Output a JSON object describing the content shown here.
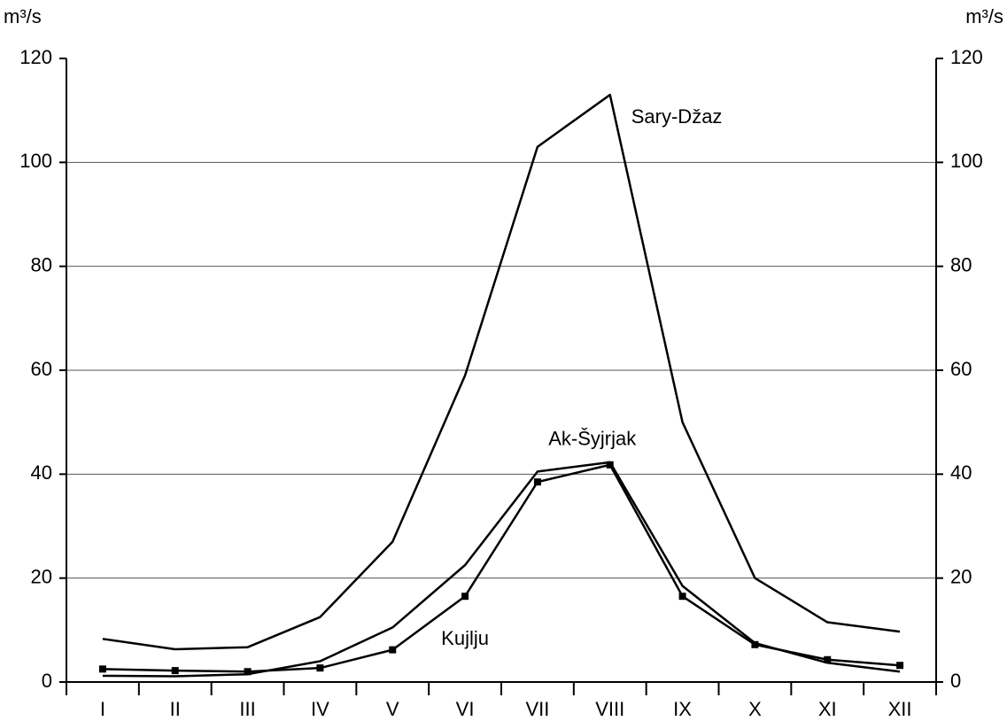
{
  "chart_data": {
    "type": "line",
    "y_label": "m³/s",
    "y2_label": "m³/s",
    "categories": [
      "I",
      "II",
      "III",
      "IV",
      "V",
      "VI",
      "VII",
      "VIII",
      "IX",
      "X",
      "XI",
      "XII"
    ],
    "series": [
      {
        "name": "Sary-Džaz",
        "color": "#000000",
        "markers": false,
        "values": [
          8.3,
          6.3,
          6.7,
          12.5,
          27,
          59,
          103,
          113,
          50,
          20,
          11.5,
          9.7
        ]
      },
      {
        "name": "Ak-Šyjrjak",
        "color": "#000000",
        "markers": false,
        "values": [
          1.2,
          1.1,
          1.5,
          4,
          10.5,
          22.5,
          40.5,
          42.3,
          18.5,
          7.5,
          3.7,
          2
        ]
      },
      {
        "name": "Kujlju",
        "color": "#000000",
        "markers": true,
        "values": [
          2.5,
          2.2,
          2,
          2.7,
          6.2,
          16.5,
          38.5,
          41.8,
          16.5,
          7.2,
          4.3,
          3.2
        ]
      }
    ],
    "ylim": [
      0,
      120
    ],
    "yticks": [
      0,
      20,
      40,
      60,
      80,
      100,
      120
    ],
    "y2lim": [
      0,
      120
    ],
    "y2ticks": [
      0,
      20,
      40,
      60,
      80,
      100,
      120
    ],
    "grid": true
  }
}
